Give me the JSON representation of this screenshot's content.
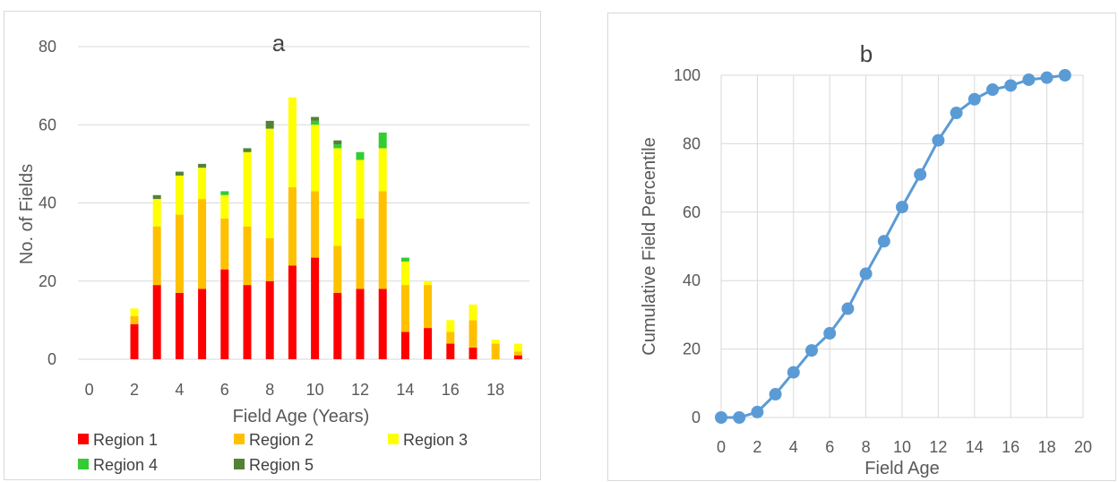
{
  "chart_data": [
    {
      "type": "bar",
      "stacked": true,
      "title": "a",
      "xlabel": "Field Age (Years)",
      "ylabel": "No. of Fields",
      "ylim": [
        0,
        80
      ],
      "yticks": [
        0,
        20,
        40,
        60,
        80
      ],
      "xticks": [
        0,
        2,
        4,
        6,
        8,
        10,
        12,
        14,
        16,
        18
      ],
      "grid": "horizontal",
      "legend_position": "bottom",
      "categories": [
        0,
        1,
        2,
        3,
        4,
        5,
        6,
        7,
        8,
        9,
        10,
        11,
        12,
        13,
        14,
        15,
        16,
        17,
        18,
        19
      ],
      "series": [
        {
          "name": "Region 1",
          "color": "#ff0000",
          "values": [
            0,
            0,
            9,
            19,
            17,
            18,
            23,
            19,
            20,
            24,
            26,
            17,
            18,
            18,
            7,
            8,
            4,
            3,
            0,
            1
          ]
        },
        {
          "name": "Region 2",
          "color": "#ffc000",
          "values": [
            0,
            0,
            2,
            15,
            20,
            23,
            13,
            15,
            11,
            20,
            17,
            12,
            18,
            25,
            12,
            11,
            3,
            7,
            4,
            1
          ]
        },
        {
          "name": "Region 3",
          "color": "#ffff00",
          "values": [
            0,
            0,
            2,
            7,
            10,
            8,
            6,
            19,
            28,
            23,
            17,
            25,
            15,
            11,
            6,
            1,
            3,
            4,
            1,
            2
          ]
        },
        {
          "name": "Region 4",
          "color": "#33cc33",
          "values": [
            0,
            0,
            0,
            0,
            0,
            0,
            1,
            0,
            0,
            0,
            1,
            1,
            2,
            4,
            1,
            0,
            0,
            0,
            0,
            0
          ]
        },
        {
          "name": "Region 5",
          "color": "#548235",
          "values": [
            0,
            0,
            0,
            1,
            1,
            1,
            0,
            1,
            2,
            0,
            1,
            1,
            0,
            0,
            0,
            0,
            0,
            0,
            0,
            0
          ]
        }
      ]
    },
    {
      "type": "line",
      "title": "b",
      "xlabel": "Field Age",
      "ylabel": "Cumulative Field Percentile",
      "xlim": [
        0,
        20
      ],
      "ylim": [
        0,
        100
      ],
      "xticks": [
        0,
        2,
        4,
        6,
        8,
        10,
        12,
        14,
        16,
        18,
        20
      ],
      "yticks": [
        0,
        20,
        40,
        60,
        80,
        100
      ],
      "grid": "both",
      "markers": true,
      "color": "#5b9bd5",
      "x": [
        0,
        1,
        2,
        3,
        4,
        5,
        6,
        7,
        8,
        9,
        10,
        11,
        12,
        13,
        14,
        15,
        16,
        17,
        18,
        19
      ],
      "values": [
        0,
        0,
        1.6,
        6.8,
        13.2,
        19.6,
        24.6,
        31.8,
        42,
        51.5,
        61.5,
        71,
        81,
        89,
        93,
        95.8,
        97,
        98.7,
        99.3,
        100
      ]
    }
  ]
}
